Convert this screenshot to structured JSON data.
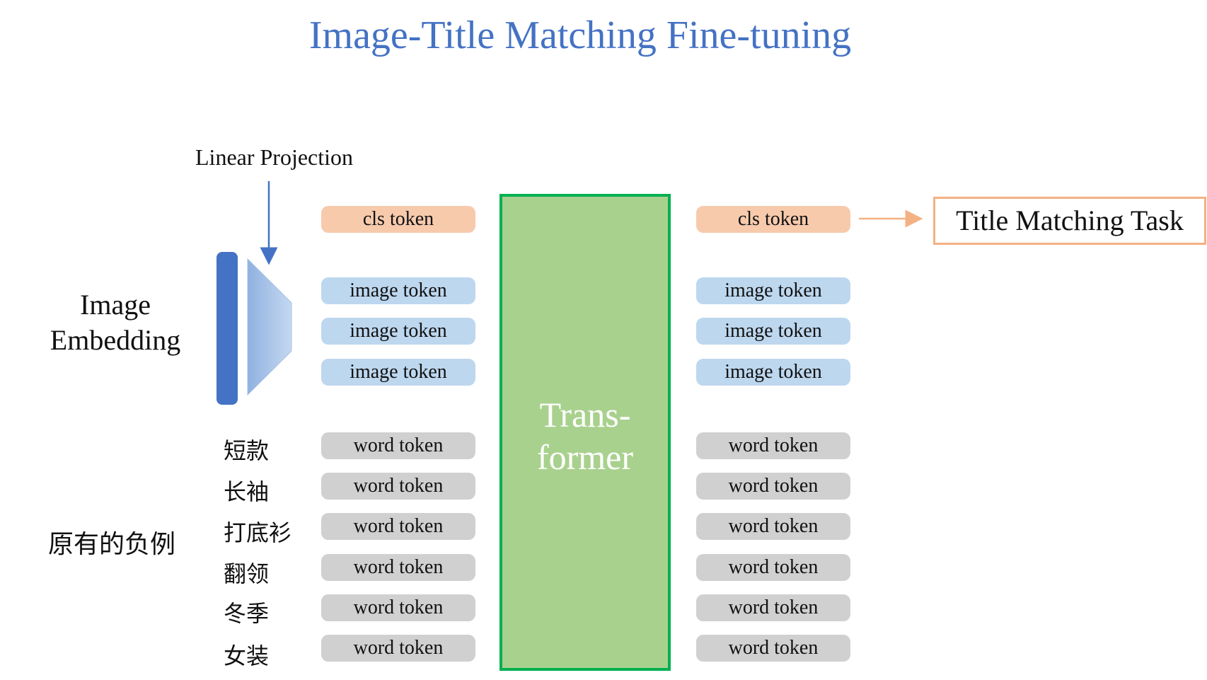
{
  "title": "Image-Title Matching Fine-tuning",
  "linear_projection_label": "Linear Projection",
  "image_embedding_label": [
    "Image",
    "Embedding"
  ],
  "negative_example_label": "原有的负例",
  "title_words": [
    "短款",
    "长袖",
    "打底衫",
    "翻领",
    "冬季",
    "女装"
  ],
  "input_tokens": {
    "cls": "cls token",
    "image": [
      "image token",
      "image token",
      "image token"
    ],
    "word": [
      "word token",
      "word token",
      "word token",
      "word token",
      "word token",
      "word token"
    ]
  },
  "transformer_label": [
    "Trans-",
    "former"
  ],
  "output_tokens": {
    "cls": "cls token",
    "image": [
      "image token",
      "image token",
      "image token"
    ],
    "word": [
      "word token",
      "word token",
      "word token",
      "word token",
      "word token",
      "word token"
    ]
  },
  "task_label": "Title Matching Task",
  "colors": {
    "title": "#4472c4",
    "cls_token": "#f7caac",
    "image_token": "#bdd7ee",
    "word_token": "#d0d0d0",
    "transformer_fill": "#a9d18e",
    "transformer_border": "#00b050",
    "task_border": "#f4b183",
    "embedding_bar": "#4472c4"
  }
}
